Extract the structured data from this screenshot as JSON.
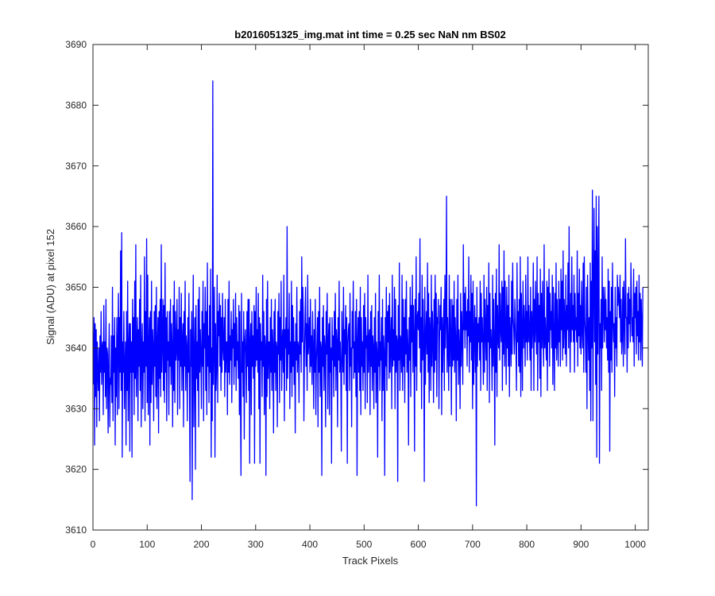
{
  "chart_data": {
    "type": "line",
    "title": "b2016051325_img.mat int time = 0.25 sec  NaN nm BS02",
    "xlabel": "Track Pixels",
    "ylabel": "Signal (ADU) at pixel 152",
    "xlim": [
      0,
      1024
    ],
    "ylim": [
      3610,
      3690
    ],
    "x_ticks": [
      0,
      100,
      200,
      300,
      400,
      500,
      600,
      700,
      800,
      900,
      1000
    ],
    "y_ticks": [
      3610,
      3620,
      3630,
      3640,
      3650,
      3660,
      3670,
      3680,
      3690
    ],
    "grid": false,
    "legend": "none",
    "line_color": "#0000ff",
    "series": [
      {
        "x_start": 1,
        "x_step": 1,
        "values": [
          3634,
          3645,
          3624,
          3644,
          3632,
          3643,
          3627,
          3641,
          3636,
          3633,
          3640,
          3628,
          3642,
          3636,
          3646,
          3634,
          3640,
          3641,
          3629,
          3647,
          3636,
          3641,
          3632,
          3648,
          3630,
          3640,
          3639,
          3626,
          3637,
          3644,
          3627,
          3635,
          3634,
          3642,
          3631,
          3650,
          3628,
          3642,
          3636,
          3645,
          3624,
          3640,
          3632,
          3645,
          3629,
          3641,
          3649,
          3630,
          3645,
          3636,
          3656,
          3633,
          3659,
          3622,
          3641,
          3636,
          3646,
          3630,
          3637,
          3641,
          3624,
          3646,
          3633,
          3651,
          3628,
          3640,
          3644,
          3623,
          3644,
          3636,
          3641,
          3622,
          3648,
          3636,
          3645,
          3629,
          3651,
          3635,
          3657,
          3632,
          3640,
          3645,
          3628,
          3643,
          3637,
          3648,
          3633,
          3652,
          3627,
          3640,
          3644,
          3630,
          3641,
          3636,
          3655,
          3628,
          3646,
          3637,
          3658,
          3631,
          3652,
          3629,
          3640,
          3645,
          3624,
          3646,
          3631,
          3651,
          3634,
          3643,
          3640,
          3628,
          3646,
          3637,
          3647,
          3632,
          3650,
          3630,
          3640,
          3645,
          3626,
          3646,
          3635,
          3648,
          3632,
          3657,
          3636,
          3641,
          3648,
          3633,
          3647,
          3631,
          3654,
          3636,
          3645,
          3628,
          3646,
          3638,
          3641,
          3629,
          3646,
          3637,
          3648,
          3634,
          3644,
          3640,
          3627,
          3647,
          3633,
          3651,
          3631,
          3646,
          3638,
          3640,
          3648,
          3629,
          3643,
          3638,
          3650,
          3630,
          3645,
          3637,
          3649,
          3633,
          3641,
          3644,
          3627,
          3646,
          3637,
          3651,
          3633,
          3642,
          3640,
          3628,
          3645,
          3636,
          3649,
          3634,
          3618,
          3643,
          3637,
          3646,
          3615,
          3641,
          3652,
          3627,
          3638,
          3645,
          3620,
          3647,
          3635,
          3641,
          3633,
          3648,
          3627,
          3650,
          3636,
          3643,
          3639,
          3630,
          3646,
          3637,
          3651,
          3628,
          3644,
          3640,
          3650,
          3633,
          3646,
          3629,
          3654,
          3637,
          3642,
          3631,
          3647,
          3636,
          3653,
          3622,
          3640,
          3628,
          3684,
          3634,
          3641,
          3650,
          3622,
          3644,
          3633,
          3637,
          3652,
          3631,
          3646,
          3642,
          3649,
          3637,
          3647,
          3633,
          3645,
          3636,
          3649,
          3640,
          3638,
          3645,
          3632,
          3648,
          3636,
          3641,
          3641,
          3629,
          3648,
          3636,
          3651,
          3634,
          3642,
          3638,
          3646,
          3631,
          3643,
          3640,
          3648,
          3634,
          3644,
          3637,
          3649,
          3633,
          3645,
          3638,
          3641,
          3635,
          3647,
          3629,
          3646,
          3631,
          3619,
          3649,
          3636,
          3641,
          3632,
          3646,
          3625,
          3641,
          3643,
          3639,
          3631,
          3646,
          3637,
          3648,
          3633,
          3648,
          3621,
          3641,
          3644,
          3629,
          3646,
          3637,
          3642,
          3635,
          3647,
          3621,
          3646,
          3637,
          3650,
          3638,
          3643,
          3636,
          3649,
          3630,
          3645,
          3621,
          3644,
          3638,
          3641,
          3632,
          3652,
          3637,
          3646,
          3629,
          3642,
          3640,
          3619,
          3648,
          3632,
          3651,
          3635,
          3641,
          3641,
          3630,
          3645,
          3636,
          3648,
          3633,
          3643,
          3640,
          3626,
          3646,
          3636,
          3648,
          3633,
          3641,
          3640,
          3627,
          3646,
          3639,
          3649,
          3631,
          3645,
          3638,
          3651,
          3633,
          3641,
          3643,
          3636,
          3652,
          3628,
          3643,
          3640,
          3645,
          3633,
          3660,
          3635,
          3643,
          3639,
          3649,
          3630,
          3641,
          3636,
          3651,
          3632,
          3647,
          3637,
          3645,
          3634,
          3641,
          3626,
          3644,
          3638,
          3650,
          3636,
          3641,
          3640,
          3631,
          3646,
          3639,
          3648,
          3636,
          3655,
          3641,
          3650,
          3645,
          3628,
          3639,
          3644,
          3650,
          3637,
          3644,
          3633,
          3652,
          3639,
          3641,
          3645,
          3636,
          3648,
          3637,
          3642,
          3634,
          3646,
          3640,
          3630,
          3643,
          3636,
          3648,
          3629,
          3638,
          3641,
          3645,
          3627,
          3646,
          3636,
          3650,
          3632,
          3641,
          3640,
          3619,
          3645,
          3637,
          3647,
          3633,
          3642,
          3640,
          3627,
          3646,
          3639,
          3649,
          3630,
          3641,
          3644,
          3629,
          3645,
          3636,
          3640,
          3621,
          3645,
          3638,
          3642,
          3632,
          3646,
          3637,
          3649,
          3633,
          3643,
          3641,
          3627,
          3645,
          3638,
          3651,
          3636,
          3641,
          3637,
          3623,
          3646,
          3640,
          3636,
          3650,
          3634,
          3643,
          3639,
          3647,
          3633,
          3645,
          3621,
          3641,
          3643,
          3644,
          3633,
          3649,
          3637,
          3640,
          3627,
          3646,
          3640,
          3651,
          3635,
          3641,
          3636,
          3646,
          3632,
          3648,
          3619,
          3641,
          3645,
          3636,
          3646,
          3633,
          3650,
          3629,
          3645,
          3637,
          3641,
          3633,
          3647,
          3636,
          3649,
          3630,
          3645,
          3640,
          3642,
          3631,
          3652,
          3636,
          3641,
          3643,
          3629,
          3646,
          3637,
          3647,
          3633,
          3642,
          3640,
          3630,
          3645,
          3636,
          3649,
          3631,
          3641,
          3639,
          3622,
          3646,
          3637,
          3652,
          3633,
          3641,
          3638,
          3645,
          3628,
          3648,
          3633,
          3642,
          3639,
          3619,
          3645,
          3637,
          3650,
          3633,
          3646,
          3641,
          3647,
          3635,
          3649,
          3636,
          3641,
          3645,
          3630,
          3652,
          3637,
          3643,
          3638,
          3650,
          3630,
          3648,
          3636,
          3642,
          3641,
          3618,
          3647,
          3638,
          3654,
          3633,
          3642,
          3641,
          3636,
          3652,
          3633,
          3648,
          3637,
          3645,
          3631,
          3648,
          3639,
          3651,
          3636,
          3643,
          3640,
          3624,
          3645,
          3638,
          3650,
          3632,
          3647,
          3641,
          3652,
          3636,
          3647,
          3642,
          3623,
          3648,
          3637,
          3655,
          3633,
          3645,
          3646,
          3643,
          3649,
          3640,
          3658,
          3636,
          3645,
          3630,
          3652,
          3638,
          3648,
          3641,
          3618,
          3650,
          3634,
          3642,
          3646,
          3639,
          3654,
          3636,
          3649,
          3631,
          3645,
          3643,
          3633,
          3652,
          3637,
          3646,
          3642,
          3631,
          3648,
          3636,
          3652,
          3638,
          3649,
          3632,
          3645,
          3644,
          3648,
          3630,
          3641,
          3647,
          3643,
          3650,
          3629,
          3645,
          3636,
          3643,
          3648,
          3633,
          3652,
          3640,
          3645,
          3665,
          3636,
          3645,
          3640,
          3633,
          3652,
          3637,
          3648,
          3642,
          3629,
          3648,
          3637,
          3647,
          3638,
          3651,
          3636,
          3645,
          3641,
          3628,
          3648,
          3638,
          3652,
          3634,
          3643,
          3640,
          3630,
          3649,
          3637,
          3646,
          3642,
          3634,
          3657,
          3643,
          3649,
          3640,
          3650,
          3643,
          3646,
          3637,
          3648,
          3642,
          3655,
          3636,
          3646,
          3641,
          3652,
          3638,
          3649,
          3630,
          3651,
          3634,
          3642,
          3647,
          3636,
          3645,
          3614,
          3650,
          3637,
          3644,
          3641,
          3645,
          3638,
          3651,
          3633,
          3649,
          3641,
          3645,
          3640,
          3634,
          3652,
          3636,
          3648,
          3643,
          3638,
          3650,
          3633,
          3647,
          3641,
          3654,
          3631,
          3649,
          3640,
          3643,
          3640,
          3633,
          3652,
          3637,
          3648,
          3641,
          3624,
          3649,
          3636,
          3653,
          3632,
          3647,
          3642,
          3640,
          3657,
          3638,
          3649,
          3643,
          3641,
          3651,
          3633,
          3650,
          3639,
          3656,
          3637,
          3651,
          3643,
          3634,
          3650,
          3640,
          3647,
          3637,
          3652,
          3632,
          3645,
          3642,
          3637,
          3651,
          3639,
          3654,
          3645,
          3643,
          3639,
          3648,
          3644,
          3640,
          3633,
          3654,
          3641,
          3646,
          3637,
          3648,
          3636,
          3655,
          3632,
          3649,
          3643,
          3633,
          3651,
          3640,
          3647,
          3643,
          3637,
          3652,
          3641,
          3646,
          3638,
          3655,
          3641,
          3647,
          3642,
          3638,
          3650,
          3633,
          3646,
          3640,
          3644,
          3654,
          3633,
          3648,
          3641,
          3651,
          3643,
          3639,
          3655,
          3633,
          3649,
          3641,
          3647,
          3635,
          3653,
          3632,
          3649,
          3640,
          3651,
          3642,
          3637,
          3657,
          3640,
          3645,
          3641,
          3638,
          3651,
          3633,
          3650,
          3641,
          3653,
          3637,
          3649,
          3643,
          3646,
          3640,
          3652,
          3634,
          3650,
          3642,
          3633,
          3649,
          3640,
          3654,
          3638,
          3648,
          3642,
          3637,
          3651,
          3641,
          3648,
          3637,
          3653,
          3643,
          3651,
          3638,
          3656,
          3640,
          3648,
          3644,
          3639,
          3652,
          3637,
          3647,
          3643,
          3654,
          3640,
          3660,
          3644,
          3636,
          3649,
          3641,
          3655,
          3643,
          3647,
          3641,
          3652,
          3636,
          3649,
          3643,
          3645,
          3641,
          3656,
          3637,
          3649,
          3642,
          3653,
          3640,
          3647,
          3639,
          3651,
          3643,
          3640,
          3654,
          3636,
          3655,
          3645,
          3642,
          3636,
          3650,
          3630,
          3652,
          3644,
          3638,
          3645,
          3633,
          3654,
          3628,
          3651,
          3640,
          3666,
          3628,
          3651,
          3663,
          3641,
          3656,
          3634,
          3665,
          3622,
          3660,
          3639,
          3652,
          3665,
          3621,
          3644,
          3640,
          3648,
          3633,
          3655,
          3640,
          3650,
          3647,
          3641,
          3650,
          3643,
          3648,
          3640,
          3645,
          3638,
          3653,
          3636,
          3651,
          3623,
          3646,
          3638,
          3650,
          3636,
          3654,
          3645,
          3641,
          3644,
          3632,
          3650,
          3640,
          3645,
          3637,
          3652,
          3647,
          3650,
          3648,
          3645,
          3652,
          3641,
          3648,
          3639,
          3642,
          3650,
          3637,
          3651,
          3645,
          3639,
          3658,
          3645,
          3645,
          3636,
          3649,
          3640,
          3650,
          3644,
          3648,
          3641,
          3654,
          3648,
          3642,
          3645,
          3641,
          3653,
          3637,
          3649,
          3645,
          3650,
          3639,
          3651,
          3642,
          3646,
          3638,
          3652,
          3641,
          3649,
          3638,
          3648,
          3644,
          3637,
          3650
        ]
      }
    ]
  }
}
